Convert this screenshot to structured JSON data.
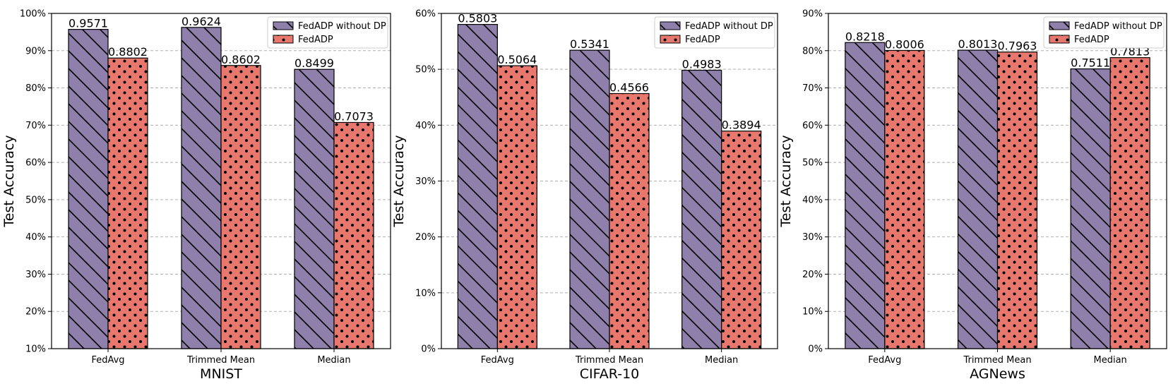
{
  "colors": {
    "series_without_dp": "#8e7fab",
    "series_fedadp": "#e8786d",
    "grid": "#b0b0b0",
    "axis": "#000000"
  },
  "chart_data": [
    {
      "type": "bar",
      "title": "",
      "xlabel": "MNIST",
      "ylabel": "Test Accuracy",
      "categories": [
        "FedAvg",
        "Trimmed Mean",
        "Median"
      ],
      "ylim": [
        0.1,
        1.0
      ],
      "yticks": [
        0.1,
        0.2,
        0.3,
        0.4,
        0.5,
        0.6,
        0.7,
        0.8,
        0.9,
        1.0
      ],
      "ytick_labels": [
        "10%",
        "20%",
        "30%",
        "40%",
        "50%",
        "60%",
        "70%",
        "80%",
        "90%",
        "100%"
      ],
      "grid": true,
      "legend_position": "top-right",
      "series": [
        {
          "name": "FedADP without DP",
          "hatch": "diagonal",
          "values": [
            0.9571,
            0.9624,
            0.8499
          ],
          "labels": [
            "0.9571",
            "0.9624",
            "0.8499"
          ]
        },
        {
          "name": "FedADP",
          "hatch": "dots",
          "values": [
            0.8802,
            0.8602,
            0.7073
          ],
          "labels": [
            "0.8802",
            "0.8602",
            "0.7073"
          ]
        }
      ]
    },
    {
      "type": "bar",
      "title": "",
      "xlabel": "CIFAR-10",
      "ylabel": "Test Accuracy",
      "categories": [
        "FedAvg",
        "Trimmed Mean",
        "Median"
      ],
      "ylim": [
        0.0,
        0.6
      ],
      "yticks": [
        0.0,
        0.1,
        0.2,
        0.3,
        0.4,
        0.5,
        0.6
      ],
      "ytick_labels": [
        "0%",
        "10%",
        "20%",
        "30%",
        "40%",
        "50%",
        "60%"
      ],
      "grid": true,
      "legend_position": "top-right",
      "series": [
        {
          "name": "FedADP without DP",
          "hatch": "diagonal",
          "values": [
            0.5803,
            0.5341,
            0.4983
          ],
          "labels": [
            "0.5803",
            "0.5341",
            "0.4983"
          ]
        },
        {
          "name": "FedADP",
          "hatch": "dots",
          "values": [
            0.5064,
            0.4566,
            0.3894
          ],
          "labels": [
            "0.5064",
            "0.4566",
            "0.3894"
          ]
        }
      ]
    },
    {
      "type": "bar",
      "title": "",
      "xlabel": "AGNews",
      "ylabel": "Test Accuracy",
      "categories": [
        "FedAvg",
        "Trimmed Mean",
        "Median"
      ],
      "ylim": [
        0.0,
        0.9
      ],
      "yticks": [
        0.0,
        0.1,
        0.2,
        0.3,
        0.4,
        0.5,
        0.6,
        0.7,
        0.8,
        0.9
      ],
      "ytick_labels": [
        "0%",
        "10%",
        "20%",
        "30%",
        "40%",
        "50%",
        "60%",
        "70%",
        "80%",
        "90%"
      ],
      "grid": true,
      "legend_position": "top-right",
      "series": [
        {
          "name": "FedADP without DP",
          "hatch": "diagonal",
          "values": [
            0.8218,
            0.8013,
            0.7511
          ],
          "labels": [
            "0.8218",
            "0.8013",
            "0.7511"
          ]
        },
        {
          "name": "FedADP",
          "hatch": "dots",
          "values": [
            0.8006,
            0.7963,
            0.7813
          ],
          "labels": [
            "0.8006",
            "0.7963",
            "0.7813"
          ]
        }
      ]
    }
  ]
}
